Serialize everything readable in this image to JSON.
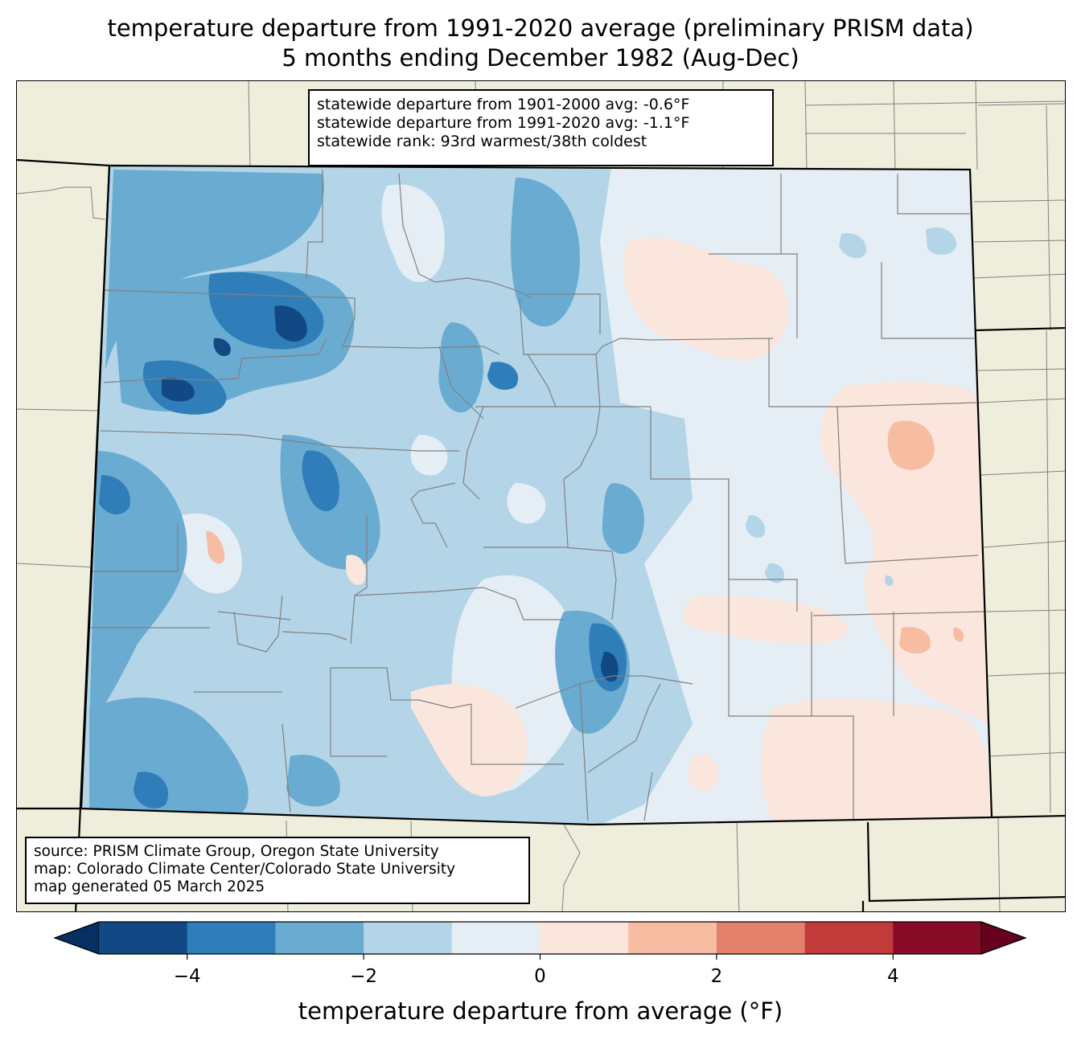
{
  "title": {
    "line1": "temperature departure from 1991-2020 average (preliminary PRISM data)",
    "line2": "5 months ending December 1982 (Aug-Dec)"
  },
  "stats": {
    "line1": "statewide departure from 1901-2000 avg: -0.6°F",
    "line2": "statewide departure from 1991-2020 avg: -1.1°F",
    "line3": "statewide rank: 93rd warmest/38th coldest"
  },
  "source": {
    "line1": "source: PRISM Climate Group, Oregon State University",
    "line2": "map: Colorado Climate Center/Colorado State University",
    "line3": "map generated 05 March 2025"
  },
  "colorbar": {
    "label": "temperature departure from average (°F)",
    "min": -5,
    "max": 5,
    "bins": [
      {
        "from": -5,
        "to": -4,
        "color": "#124984"
      },
      {
        "from": -4,
        "to": -3,
        "color": "#2f7eba"
      },
      {
        "from": -3,
        "to": -2,
        "color": "#6aabd2"
      },
      {
        "from": -2,
        "to": -1,
        "color": "#b4d5e7"
      },
      {
        "from": -1,
        "to": 0,
        "color": "#e6eef5"
      },
      {
        "from": 0,
        "to": 1,
        "color": "#fbe6dd"
      },
      {
        "from": 1,
        "to": 2,
        "color": "#f7bda3"
      },
      {
        "from": 2,
        "to": 3,
        "color": "#e3816c"
      },
      {
        "from": 3,
        "to": 4,
        "color": "#c23b3b"
      },
      {
        "from": 4,
        "to": 5,
        "color": "#870c27"
      }
    ],
    "under_color": "#053061",
    "over_color": "#67001f",
    "ticks": [
      {
        "value": -4,
        "label": "−4"
      },
      {
        "value": -2,
        "label": "−2"
      },
      {
        "value": 0,
        "label": "0"
      },
      {
        "value": 2,
        "label": "2"
      },
      {
        "value": 4,
        "label": "4"
      }
    ]
  },
  "map_colors": {
    "land_outside": "#efeedd",
    "county_line": "#808080",
    "state_line": "#000000"
  }
}
